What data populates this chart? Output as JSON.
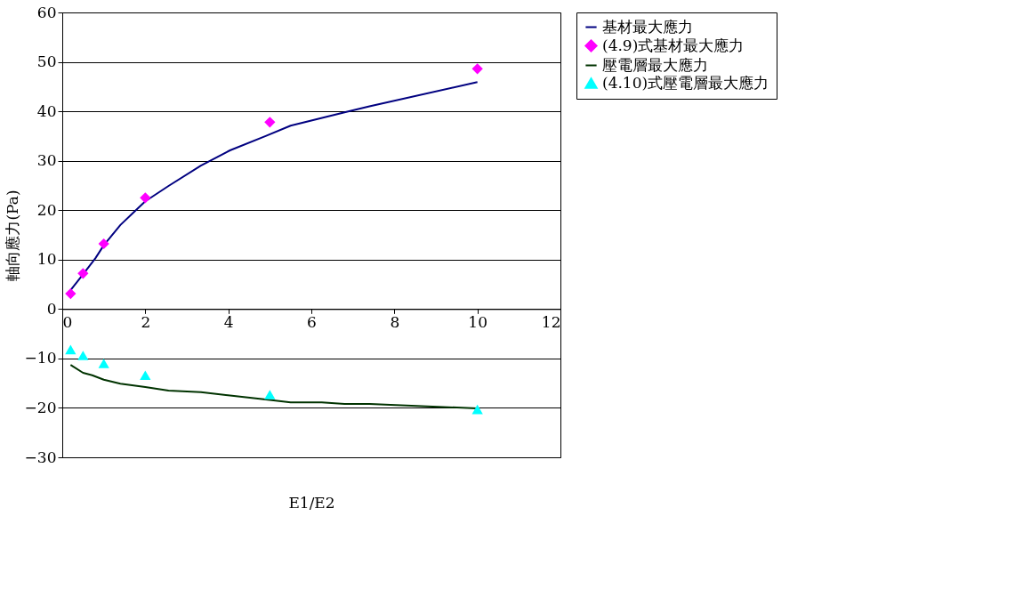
{
  "chart_data": {
    "type": "line",
    "xlabel": "E1/E2",
    "ylabel": "軸向應力(Pa)",
    "xlim": [
      0,
      12
    ],
    "xticks": [
      0,
      2,
      4,
      6,
      8,
      10,
      12
    ],
    "ylim": [
      -30,
      60
    ],
    "yticks": [
      -30,
      -20,
      -10,
      0,
      10,
      20,
      30,
      40,
      50,
      60
    ],
    "grid": "y",
    "legend": "right",
    "series": [
      {
        "name": "基材最大應力",
        "color": "#000080",
        "x": [
          0.2,
          0.5,
          0.8,
          1,
          1.4,
          1.7,
          2,
          2.56,
          3.34,
          4.04,
          4.9,
          5.5,
          6.8,
          7.4,
          10
        ],
        "values": [
          3.8,
          7,
          10.3,
          12.9,
          17,
          19.4,
          21.8,
          24.9,
          29,
          32.1,
          35,
          37.1,
          39.8,
          41,
          45.9
        ]
      },
      {
        "name": "(4.9)式基材最大應力",
        "type": "scatter",
        "marker": "diamond",
        "color": "#ff00ff",
        "x": [
          0.2,
          0.5,
          1,
          2,
          5,
          10
        ],
        "values": [
          3.1,
          7.2,
          13.2,
          22.5,
          37.8,
          48.6
        ]
      },
      {
        "name": "壓電層最大應力",
        "color": "#003300",
        "x": [
          0.2,
          0.5,
          0.72,
          1,
          1.4,
          2,
          2.56,
          3.34,
          4.04,
          5,
          5.5,
          6.25,
          6.8,
          7.4,
          10
        ],
        "values": [
          -11.3,
          -12.9,
          -13.4,
          -14.3,
          -15.1,
          -15.8,
          -16.5,
          -16.8,
          -17.5,
          -18.4,
          -18.9,
          -18.9,
          -19.2,
          -19.2,
          -20.1
        ]
      },
      {
        "name": "(4.10)式壓電層最大應力",
        "type": "scatter",
        "marker": "triangle",
        "color": "#00ffff",
        "x": [
          0.2,
          0.5,
          1,
          2,
          5,
          10
        ],
        "values": [
          -8.2,
          -9.4,
          -11,
          -13.4,
          -17.3,
          -20.3
        ]
      }
    ]
  }
}
